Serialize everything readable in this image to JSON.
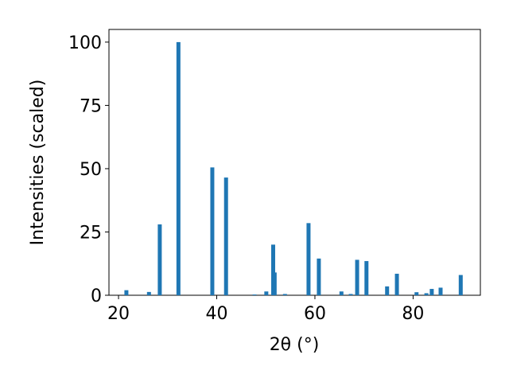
{
  "chart_data": {
    "type": "bar",
    "xlabel": "2θ (°)",
    "ylabel": "Intensities (scaled)",
    "color": "#1f77b4",
    "x": [
      21.6,
      26.2,
      28.4,
      32.2,
      39.1,
      41.9,
      47.7,
      50.1,
      51.5,
      51.8,
      53.9,
      58.7,
      60.8,
      65.4,
      67.3,
      68.6,
      70.5,
      74.7,
      76.7,
      80.7,
      82.7,
      83.8,
      85.6,
      89.7
    ],
    "values": [
      2,
      1.3,
      28,
      100,
      50.5,
      46.5,
      0.3,
      1.5,
      20,
      9,
      0.5,
      28.5,
      14.5,
      1.5,
      0.5,
      14,
      13.5,
      3.5,
      8.5,
      1.2,
      0.8,
      2.5,
      3,
      8
    ],
    "xlim": [
      18.05,
      93.7
    ],
    "ylim": [
      0,
      105
    ],
    "xticks": [
      20,
      40,
      60,
      80
    ],
    "yticks": [
      0,
      25,
      50,
      75,
      100
    ]
  }
}
